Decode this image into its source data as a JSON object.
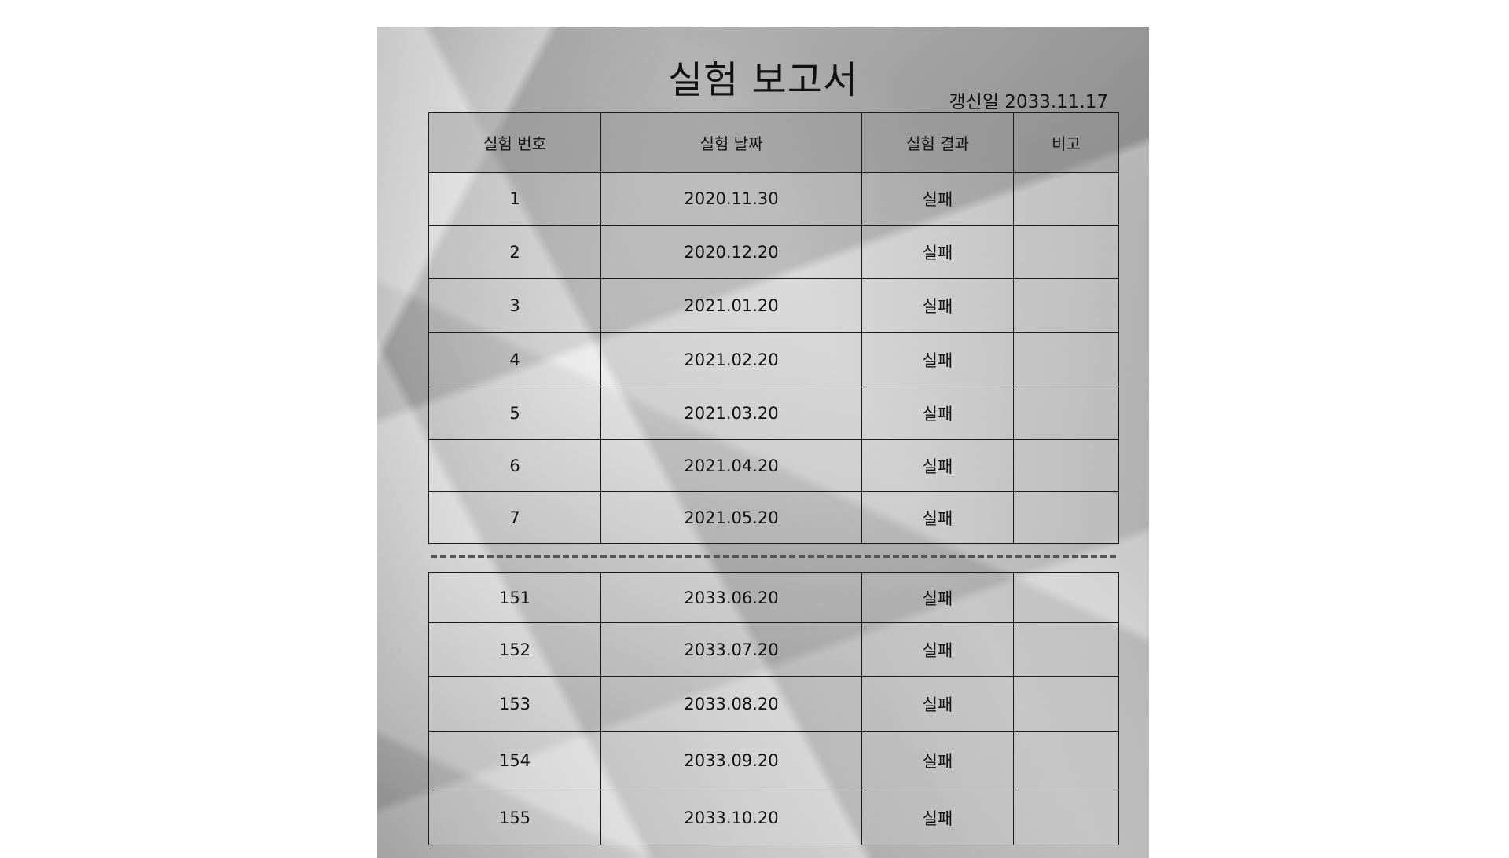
{
  "title": "실험 보고서",
  "updated": "갱신일 2033.11.17",
  "headers": [
    "실험 번호",
    "실험 날짜",
    "실험 결과",
    "비고"
  ],
  "rows_top": [
    {
      "no": "1",
      "date": "2020.11.30",
      "result": "실패",
      "note": ""
    },
    {
      "no": "2",
      "date": "2020.12.20",
      "result": "실패",
      "note": ""
    },
    {
      "no": "3",
      "date": "2021.01.20",
      "result": "실패",
      "note": ""
    },
    {
      "no": "4",
      "date": "2021.02.20",
      "result": "실패",
      "note": ""
    },
    {
      "no": "5",
      "date": "2021.03.20",
      "result": "실패",
      "note": ""
    },
    {
      "no": "6",
      "date": "2021.04.20",
      "result": "실패",
      "note": ""
    },
    {
      "no": "7",
      "date": "2021.05.20",
      "result": "실패",
      "note": ""
    }
  ],
  "rows_bottom": [
    {
      "no": "151",
      "date": "2033.06.20",
      "result": "실패",
      "note": ""
    },
    {
      "no": "152",
      "date": "2033.07.20",
      "result": "실패",
      "note": ""
    },
    {
      "no": "153",
      "date": "2033.08.20",
      "result": "실패",
      "note": ""
    },
    {
      "no": "154",
      "date": "2033.09.20",
      "result": "실패",
      "note": ""
    },
    {
      "no": "155",
      "date": "2033.10.20",
      "result": "실패",
      "note": ""
    }
  ]
}
